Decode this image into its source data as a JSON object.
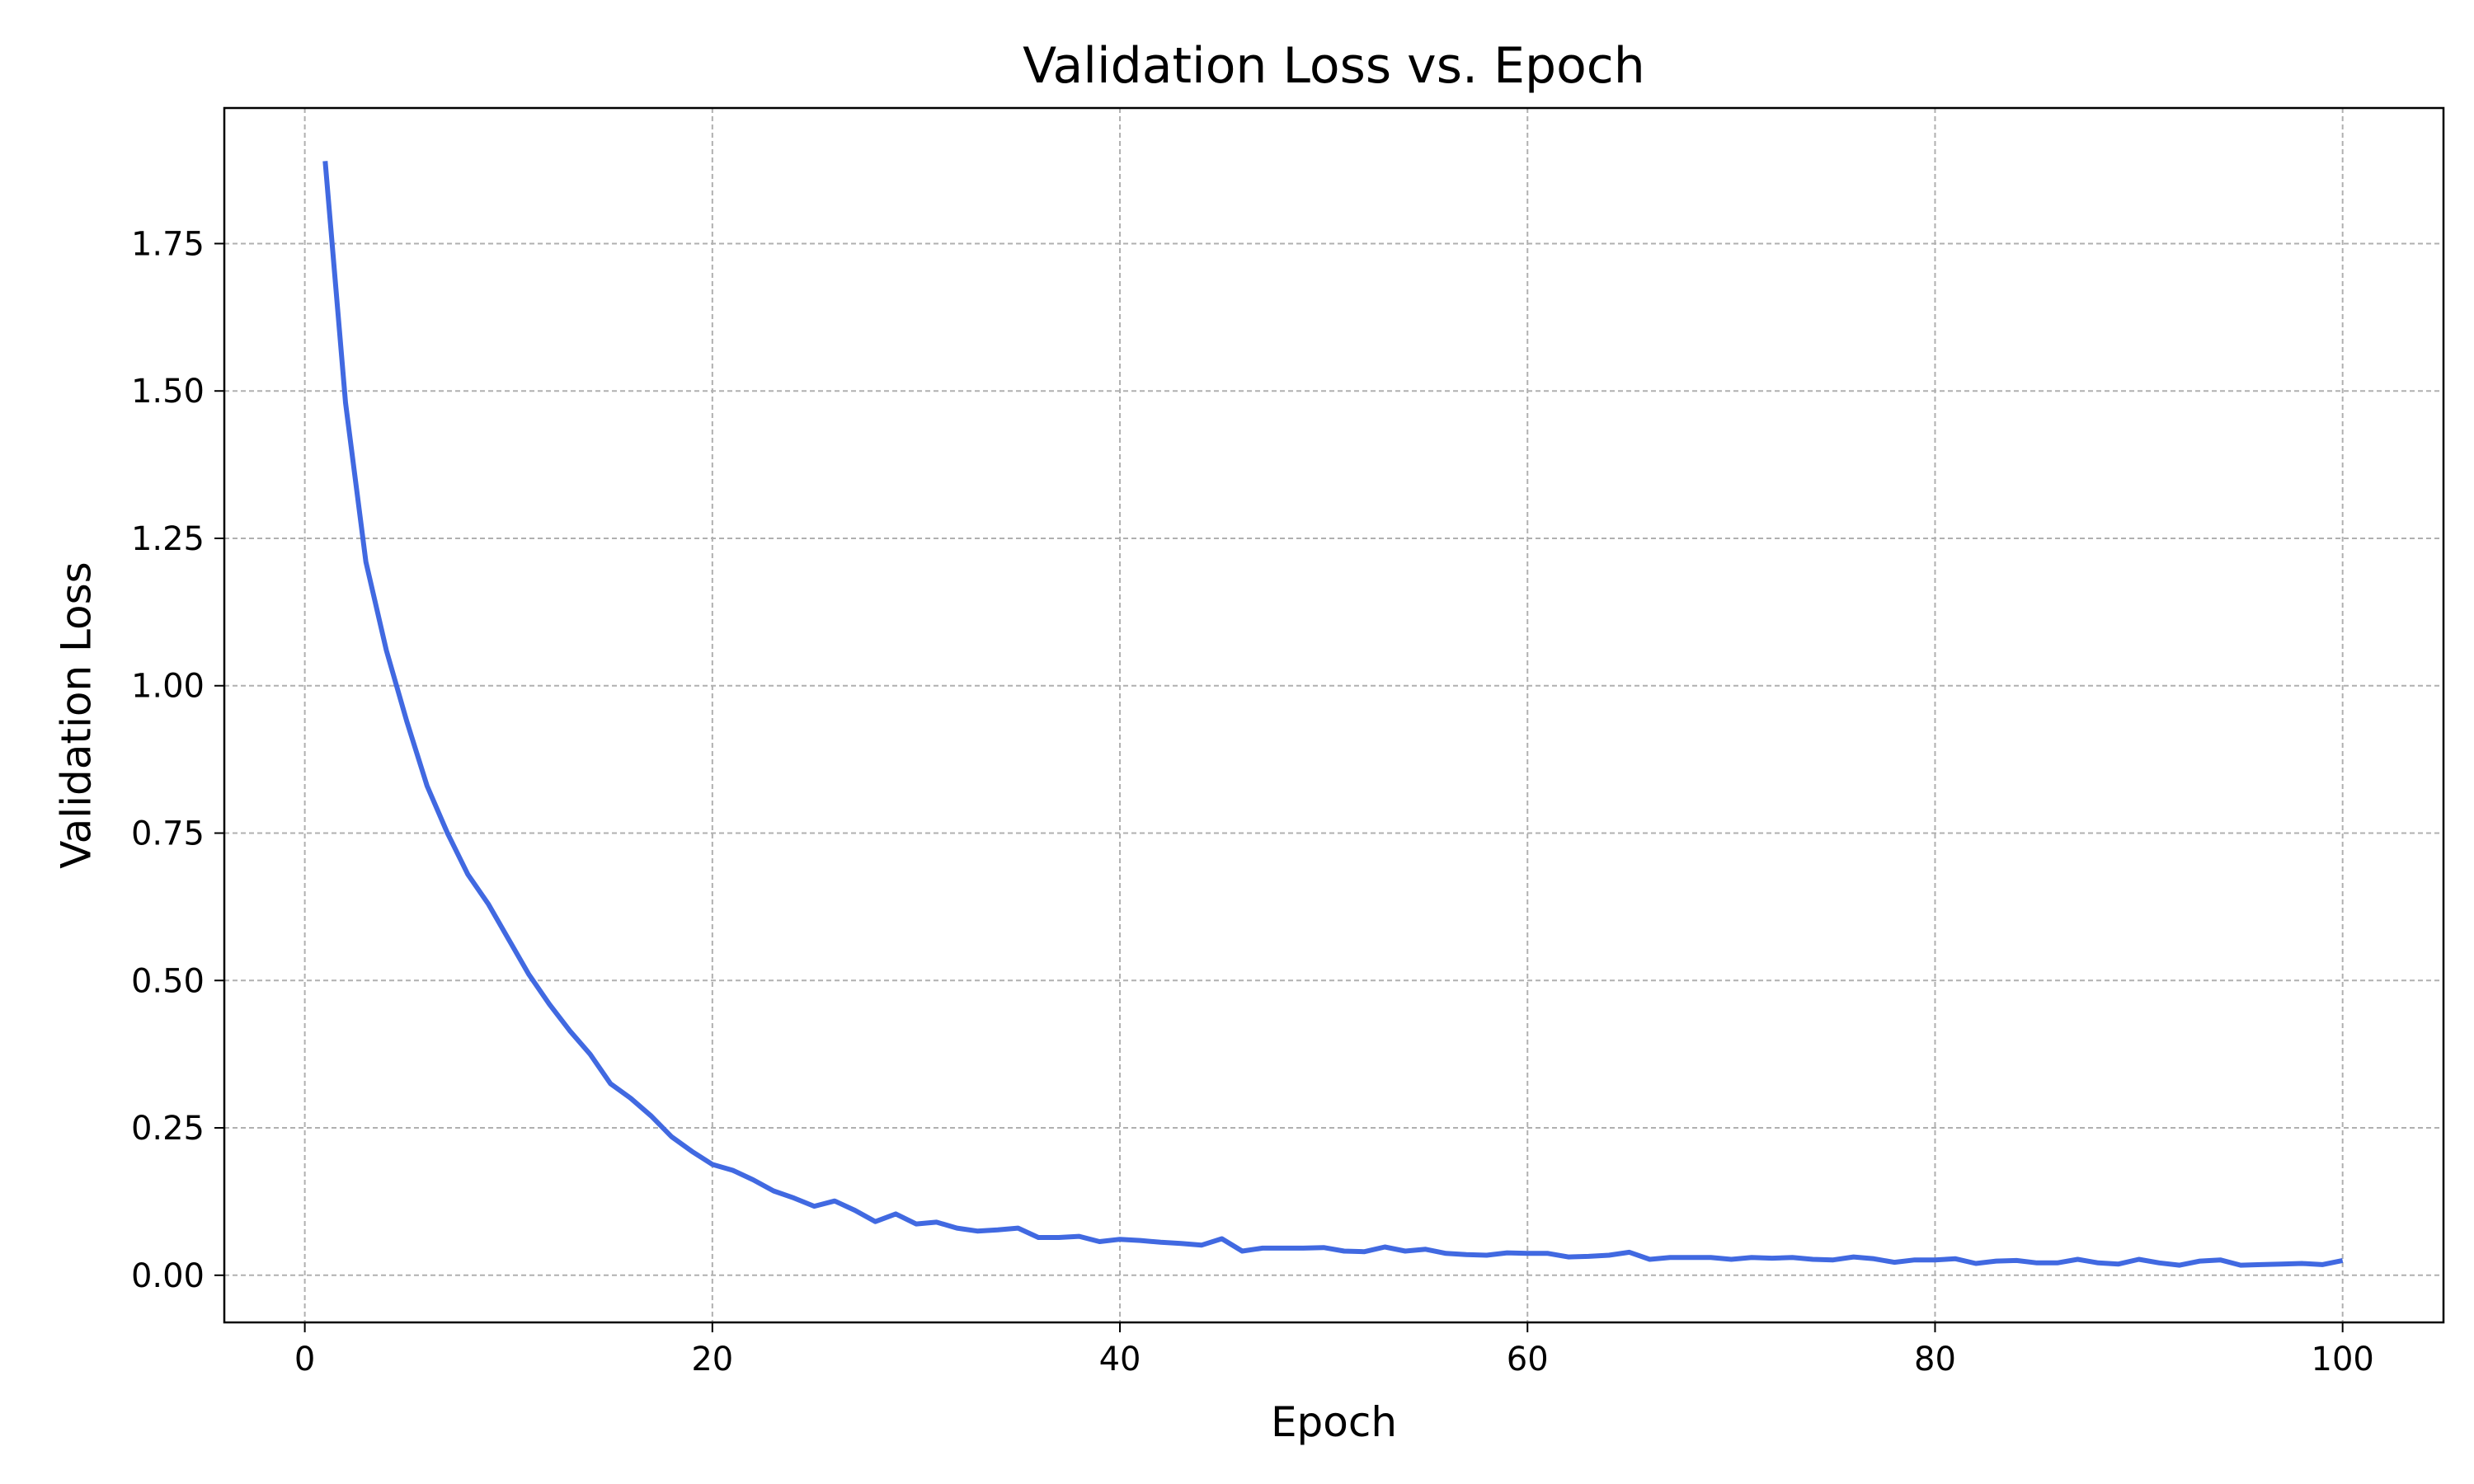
{
  "chart_data": {
    "type": "line",
    "title": "Validation Loss vs. Epoch",
    "xlabel": "Epoch",
    "ylabel": "Validation Loss",
    "xlim": [
      -3.95,
      104.95
    ],
    "ylim": [
      -0.08,
      1.98
    ],
    "xticks": [
      0,
      20,
      40,
      60,
      80,
      100
    ],
    "xtick_labels": [
      "0",
      "20",
      "40",
      "60",
      "80",
      "100"
    ],
    "yticks": [
      0,
      0.25,
      0.5,
      0.75,
      1.0,
      1.25,
      1.5,
      1.75
    ],
    "ytick_labels": [
      "0.00",
      "0.25",
      "0.50",
      "0.75",
      "1.00",
      "1.25",
      "1.50",
      "1.75"
    ],
    "grid": true,
    "series": [
      {
        "name": "",
        "color": "#4169e1",
        "x": [
          1,
          2,
          3,
          4,
          5,
          6,
          7,
          8,
          9,
          10,
          11,
          12,
          13,
          14,
          15,
          16,
          17,
          18,
          19,
          20,
          21,
          22,
          23,
          24,
          25,
          26,
          27,
          28,
          29,
          30,
          31,
          32,
          33,
          34,
          35,
          36,
          37,
          38,
          39,
          40,
          41,
          42,
          43,
          44,
          45,
          46,
          47,
          48,
          49,
          50,
          51,
          52,
          53,
          54,
          55,
          56,
          57,
          58,
          59,
          60,
          61,
          62,
          63,
          64,
          65,
          66,
          67,
          68,
          69,
          70,
          71,
          72,
          73,
          74,
          75,
          76,
          77,
          78,
          79,
          80,
          81,
          82,
          83,
          84,
          85,
          86,
          87,
          88,
          89,
          90,
          91,
          92,
          93,
          94,
          95,
          96,
          97,
          98,
          99,
          100
        ],
        "y": [
          1.89,
          1.48,
          1.21,
          1.06,
          0.94,
          0.83,
          0.75,
          0.68,
          0.63,
          0.57,
          0.51,
          0.46,
          0.415,
          0.375,
          0.325,
          0.3,
          0.27,
          0.235,
          0.21,
          0.188,
          0.178,
          0.162,
          0.143,
          0.131,
          0.117,
          0.126,
          0.11,
          0.091,
          0.104,
          0.087,
          0.09,
          0.08,
          0.075,
          0.077,
          0.08,
          0.064,
          0.064,
          0.066,
          0.057,
          0.061,
          0.059,
          0.056,
          0.054,
          0.051,
          0.062,
          0.041,
          0.046,
          0.046,
          0.046,
          0.047,
          0.041,
          0.04,
          0.048,
          0.041,
          0.044,
          0.037,
          0.035,
          0.034,
          0.038,
          0.037,
          0.037,
          0.031,
          0.032,
          0.034,
          0.039,
          0.027,
          0.03,
          0.03,
          0.03,
          0.027,
          0.03,
          0.029,
          0.03,
          0.027,
          0.026,
          0.031,
          0.028,
          0.022,
          0.026,
          0.026,
          0.028,
          0.02,
          0.024,
          0.025,
          0.021,
          0.021,
          0.027,
          0.021,
          0.019,
          0.027,
          0.021,
          0.017,
          0.024,
          0.026,
          0.017,
          0.018,
          0.019,
          0.02,
          0.018,
          0.025
        ]
      }
    ]
  }
}
